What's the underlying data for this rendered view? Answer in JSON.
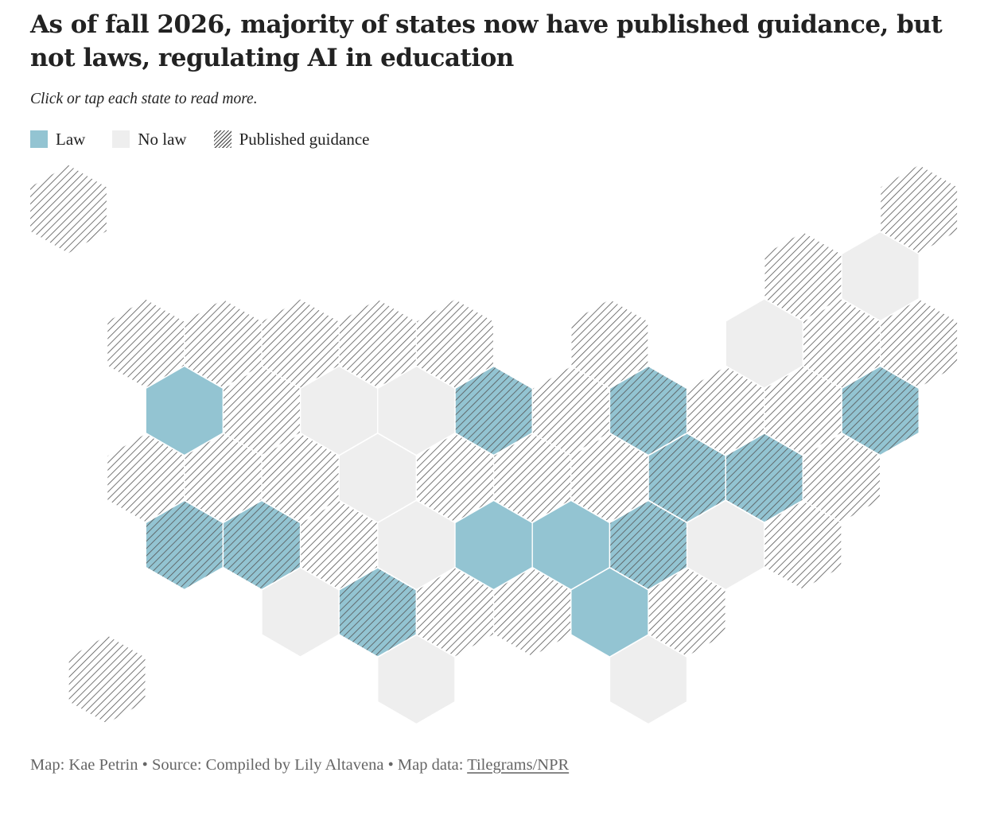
{
  "title": "As of fall 2026, majority of states now have published guidance, but not laws, regulating AI in education",
  "subtitle": "Click or tap each state to read more.",
  "legend": [
    {
      "key": "law",
      "label": "Law"
    },
    {
      "key": "nolaw",
      "label": "No law"
    },
    {
      "key": "guidance",
      "label": "Published guidance"
    }
  ],
  "colors": {
    "law": "#93c4d2",
    "no_law": "#eeeeee",
    "hatch_line": "#555555",
    "hex_border": "#ffffff"
  },
  "footer": {
    "map_credit": "Map: Kae Petrin",
    "source": "Source: Compiled by Lily Altavena",
    "map_data_prefix": "Map data: ",
    "map_data_link": "Tilegrams/NPR",
    "separator": " • "
  },
  "states": [
    {
      "row": 0,
      "col": 0,
      "law": false,
      "guidance": true
    },
    {
      "row": 0,
      "col": 11,
      "law": false,
      "guidance": true
    },
    {
      "row": 1,
      "col": 9.5,
      "law": false,
      "guidance": true
    },
    {
      "row": 1,
      "col": 10.5,
      "law": false,
      "guidance": false
    },
    {
      "row": 2,
      "col": 1,
      "law": false,
      "guidance": true
    },
    {
      "row": 2,
      "col": 2,
      "law": false,
      "guidance": true
    },
    {
      "row": 2,
      "col": 3,
      "law": false,
      "guidance": true
    },
    {
      "row": 2,
      "col": 4,
      "law": false,
      "guidance": true
    },
    {
      "row": 2,
      "col": 5,
      "law": false,
      "guidance": true
    },
    {
      "row": 2,
      "col": 7,
      "law": false,
      "guidance": true
    },
    {
      "row": 2,
      "col": 9,
      "law": false,
      "guidance": false
    },
    {
      "row": 2,
      "col": 10,
      "law": false,
      "guidance": true
    },
    {
      "row": 2,
      "col": 11,
      "law": false,
      "guidance": true
    },
    {
      "row": 3,
      "col": 1.5,
      "law": true,
      "guidance": false
    },
    {
      "row": 3,
      "col": 2.5,
      "law": false,
      "guidance": true
    },
    {
      "row": 3,
      "col": 3.5,
      "law": false,
      "guidance": false
    },
    {
      "row": 3,
      "col": 4.5,
      "law": false,
      "guidance": false
    },
    {
      "row": 3,
      "col": 5.5,
      "law": true,
      "guidance": true
    },
    {
      "row": 3,
      "col": 6.5,
      "law": false,
      "guidance": true
    },
    {
      "row": 3,
      "col": 7.5,
      "law": true,
      "guidance": true
    },
    {
      "row": 3,
      "col": 8.5,
      "law": false,
      "guidance": true
    },
    {
      "row": 3,
      "col": 9.5,
      "law": false,
      "guidance": true
    },
    {
      "row": 3,
      "col": 10.5,
      "law": true,
      "guidance": true
    },
    {
      "row": 4,
      "col": 1,
      "law": false,
      "guidance": true
    },
    {
      "row": 4,
      "col": 2,
      "law": false,
      "guidance": true
    },
    {
      "row": 4,
      "col": 3,
      "law": false,
      "guidance": true
    },
    {
      "row": 4,
      "col": 4,
      "law": false,
      "guidance": false
    },
    {
      "row": 4,
      "col": 5,
      "law": false,
      "guidance": true
    },
    {
      "row": 4,
      "col": 6,
      "law": false,
      "guidance": true
    },
    {
      "row": 4,
      "col": 7,
      "law": false,
      "guidance": true
    },
    {
      "row": 4,
      "col": 8,
      "law": true,
      "guidance": true
    },
    {
      "row": 4,
      "col": 9,
      "law": true,
      "guidance": true
    },
    {
      "row": 4,
      "col": 10,
      "law": false,
      "guidance": true
    },
    {
      "row": 5,
      "col": 1.5,
      "law": true,
      "guidance": true
    },
    {
      "row": 5,
      "col": 2.5,
      "law": true,
      "guidance": true
    },
    {
      "row": 5,
      "col": 3.5,
      "law": false,
      "guidance": true
    },
    {
      "row": 5,
      "col": 4.5,
      "law": false,
      "guidance": false
    },
    {
      "row": 5,
      "col": 5.5,
      "law": true,
      "guidance": false
    },
    {
      "row": 5,
      "col": 6.5,
      "law": true,
      "guidance": false
    },
    {
      "row": 5,
      "col": 7.5,
      "law": true,
      "guidance": true
    },
    {
      "row": 5,
      "col": 8.5,
      "law": false,
      "guidance": false
    },
    {
      "row": 5,
      "col": 9.5,
      "law": false,
      "guidance": true
    },
    {
      "row": 6,
      "col": 3,
      "law": false,
      "guidance": false
    },
    {
      "row": 6,
      "col": 4,
      "law": true,
      "guidance": true
    },
    {
      "row": 6,
      "col": 5,
      "law": false,
      "guidance": true
    },
    {
      "row": 6,
      "col": 6,
      "law": false,
      "guidance": true
    },
    {
      "row": 6,
      "col": 7,
      "law": true,
      "guidance": false
    },
    {
      "row": 6,
      "col": 8,
      "law": false,
      "guidance": true
    },
    {
      "row": 7,
      "col": 0.5,
      "law": false,
      "guidance": true
    },
    {
      "row": 7,
      "col": 4.5,
      "law": false,
      "guidance": false
    },
    {
      "row": 7,
      "col": 7.5,
      "law": false,
      "guidance": false
    }
  ]
}
